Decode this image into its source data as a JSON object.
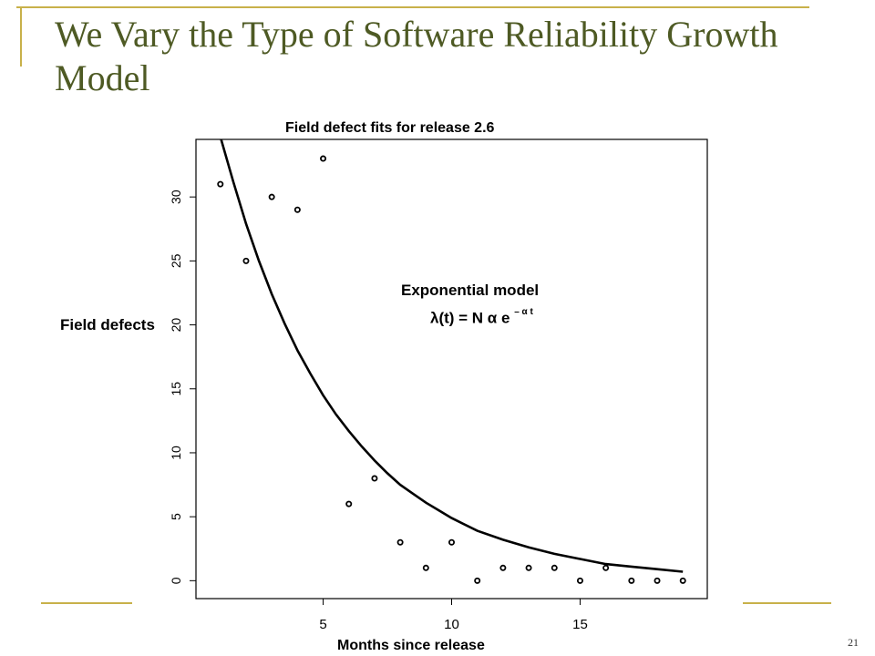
{
  "slide": {
    "title": "We Vary the Type of Software Reliability Growth Model",
    "page_number": "21",
    "colors": {
      "title": "#4e5a24",
      "frame": "#c8b14a"
    }
  },
  "annotation": {
    "line1": "Exponential model",
    "formula_base": "λ(t) = N α e",
    "formula_exponent": "– α t"
  },
  "chart_data": {
    "type": "scatter",
    "title": "Field defect fits for release 2.6",
    "xlabel": "Months since release",
    "ylabel": "Field defects",
    "xlim": [
      0.05,
      19.95
    ],
    "ylim": [
      -1.4,
      34.5
    ],
    "xticks": [
      5,
      10,
      15
    ],
    "yticks": [
      0,
      5,
      10,
      15,
      20,
      25,
      30
    ],
    "grid": false,
    "series": [
      {
        "kind": "points",
        "x": [
          1,
          2,
          3,
          4,
          5,
          6,
          7,
          8,
          9,
          10,
          11,
          12,
          13,
          14,
          15,
          16,
          17,
          18,
          19
        ],
        "y": [
          31,
          25,
          30,
          29,
          33,
          6,
          8,
          3,
          1,
          3,
          0,
          1,
          1,
          1,
          0,
          1,
          0,
          0,
          0
        ]
      },
      {
        "kind": "fitted_curve",
        "x": [
          1.0,
          1.5,
          2.0,
          2.5,
          3.0,
          3.5,
          4.0,
          4.5,
          5.0,
          5.5,
          6.0,
          6.5,
          7.0,
          7.5,
          8.0,
          8.5,
          9.0,
          9.5,
          10.0,
          11.0,
          12.0,
          13.0,
          14.0,
          15.0,
          16.0,
          17.0,
          18.0,
          19.0
        ],
        "y": [
          34.7,
          31.2,
          27.9,
          25.0,
          22.4,
          20.1,
          18.0,
          16.2,
          14.5,
          13.0,
          11.7,
          10.5,
          9.4,
          8.4,
          7.5,
          6.8,
          6.1,
          5.5,
          4.9,
          3.9,
          3.2,
          2.6,
          2.1,
          1.7,
          1.3,
          1.1,
          0.9,
          0.7
        ]
      }
    ]
  }
}
